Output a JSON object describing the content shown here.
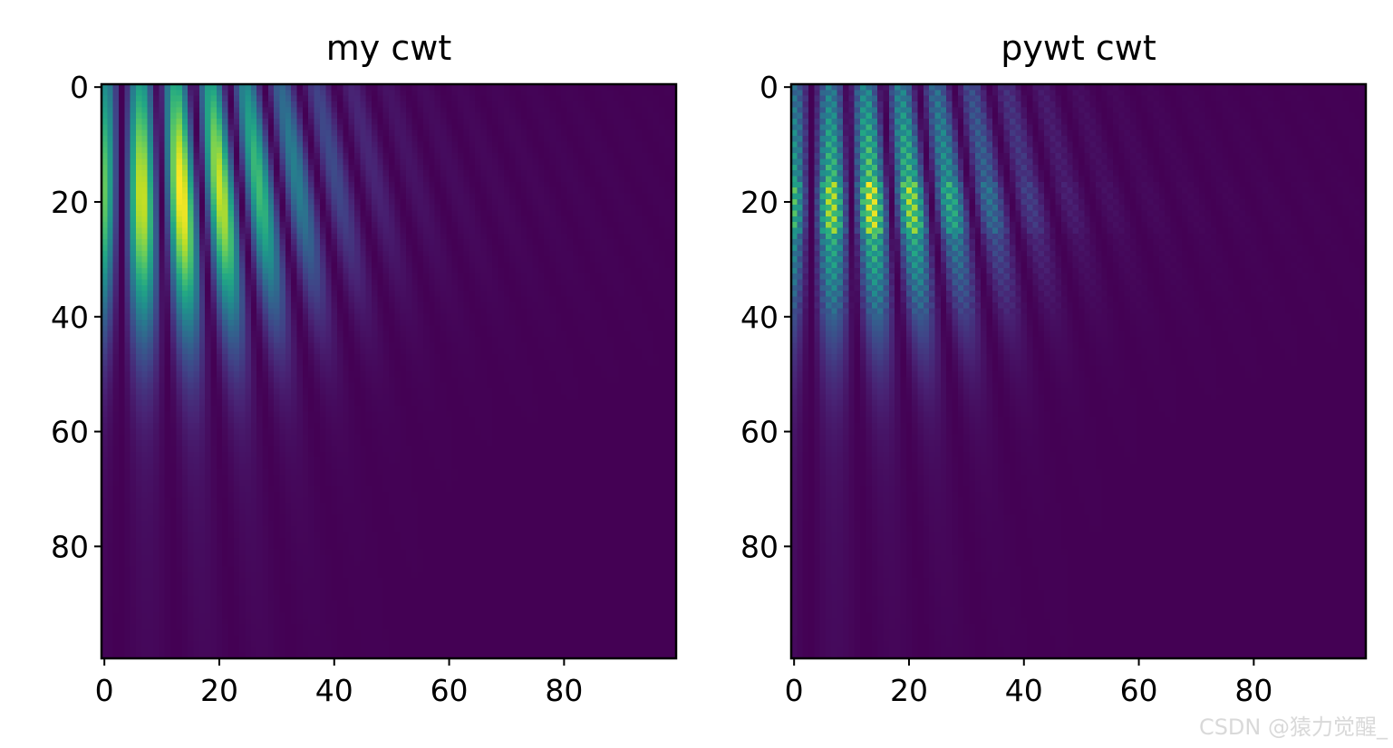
{
  "chart_data": [
    {
      "type": "heatmap",
      "title": "my cwt",
      "colormap": "viridis",
      "rows": 100,
      "cols": 100,
      "xlim": [
        -0.5,
        99.5
      ],
      "ylim": [
        99.5,
        -0.5
      ],
      "xticks": [
        0,
        20,
        40,
        60,
        80
      ],
      "yticks": [
        0,
        20,
        40,
        60,
        80
      ],
      "xlabel": "",
      "ylabel": "",
      "description_params": {
        "oscillation_period_cols": 6.2,
        "peak_row": 20,
        "peak_col": 15,
        "smooth": true
      }
    },
    {
      "type": "heatmap",
      "title": "pywt cwt",
      "colormap": "viridis",
      "rows": 100,
      "cols": 100,
      "xlim": [
        -0.5,
        99.5
      ],
      "ylim": [
        99.5,
        -0.5
      ],
      "xticks": [
        0,
        20,
        40,
        60,
        80
      ],
      "yticks": [
        0,
        20,
        40,
        60,
        80
      ],
      "xlabel": "",
      "ylabel": "",
      "description_params": {
        "oscillation_period_cols": 6.2,
        "peak_row": 20,
        "peak_col": 15,
        "smooth": false
      }
    }
  ],
  "watermark": "CSDN @猿力觉醒_"
}
